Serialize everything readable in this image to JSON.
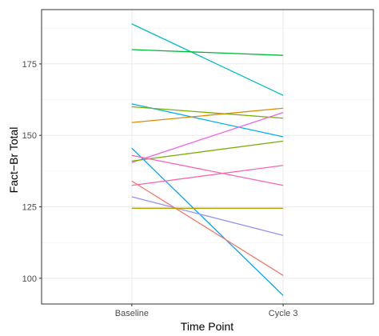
{
  "chart_data": {
    "type": "line",
    "title": "",
    "xlabel": "Time Point",
    "ylabel": "Fact−Br Total",
    "categories": [
      "Baseline",
      "Cycle 3"
    ],
    "ylim": [
      91,
      194
    ],
    "yticks": [
      100,
      125,
      150,
      175
    ],
    "grid": true,
    "legend": "none",
    "series": [
      {
        "color": "#00BFC4",
        "values": [
          189,
          164
        ]
      },
      {
        "color": "#00BA38",
        "values": [
          180,
          178
        ]
      },
      {
        "color": "#00B0F6",
        "values": [
          161,
          149.5
        ]
      },
      {
        "color": "#7CAE00",
        "values": [
          160,
          156
        ]
      },
      {
        "color": "#DE8C00",
        "values": [
          154.5,
          159.5
        ]
      },
      {
        "color": "#F564E3",
        "values": [
          140.5,
          158
        ]
      },
      {
        "color": "#00A5FF",
        "values": [
          145.5,
          94
        ]
      },
      {
        "color": "#7CAE00",
        "values": [
          141,
          148
        ]
      },
      {
        "color": "#FF64B0",
        "values": [
          143,
          132.5
        ]
      },
      {
        "color": "#FF64B0",
        "values": [
          132.5,
          139.5
        ]
      },
      {
        "color": "#F8766D",
        "values": [
          134,
          101
        ]
      },
      {
        "color": "#9590FF",
        "values": [
          128.5,
          115
        ]
      },
      {
        "color": "#B79F00",
        "values": [
          124.5,
          124.5
        ]
      }
    ]
  }
}
